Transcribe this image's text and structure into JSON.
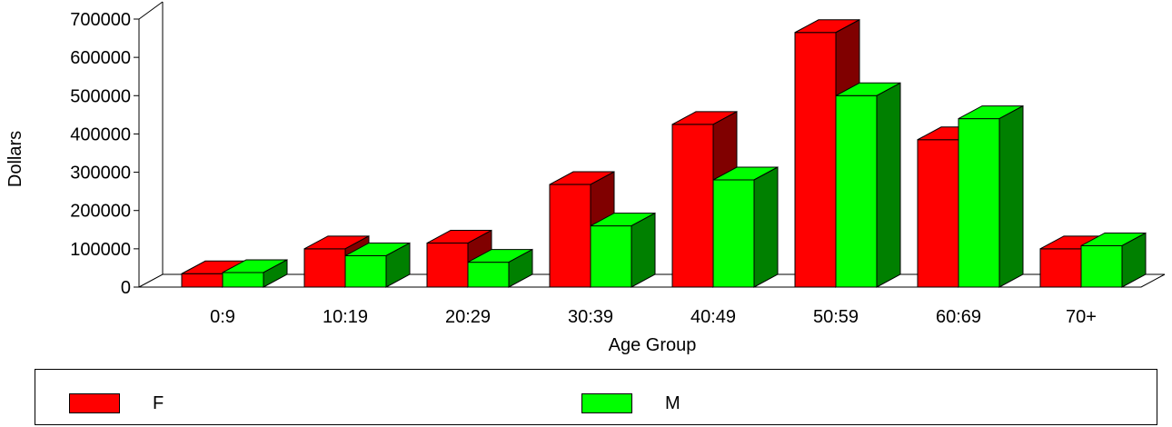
{
  "chart_data": {
    "type": "bar",
    "subtype": "grouped-3d",
    "title": "",
    "xlabel": "Age Group",
    "ylabel": "Dollars",
    "categories": [
      "0:9",
      "10:19",
      "20:29",
      "30:39",
      "40:49",
      "50:59",
      "60:69",
      "70+"
    ],
    "series": [
      {
        "name": "F",
        "color": "#ff0000",
        "side_color": "#800000",
        "values": [
          35000,
          100000,
          115000,
          268000,
          425000,
          665000,
          385000,
          100000
        ]
      },
      {
        "name": "M",
        "color": "#00ff00",
        "side_color": "#008000",
        "values": [
          38000,
          82000,
          65000,
          160000,
          280000,
          500000,
          440000,
          108000
        ]
      }
    ],
    "ylim": [
      0,
      700000
    ],
    "yticks": [
      "0",
      "100000",
      "200000",
      "300000",
      "400000",
      "500000",
      "600000",
      "700000"
    ],
    "grid": false,
    "legend_position": "bottom"
  },
  "legend": {
    "items": [
      {
        "label": "F",
        "color": "#ff0000"
      },
      {
        "label": "M",
        "color": "#00ff00"
      }
    ]
  }
}
